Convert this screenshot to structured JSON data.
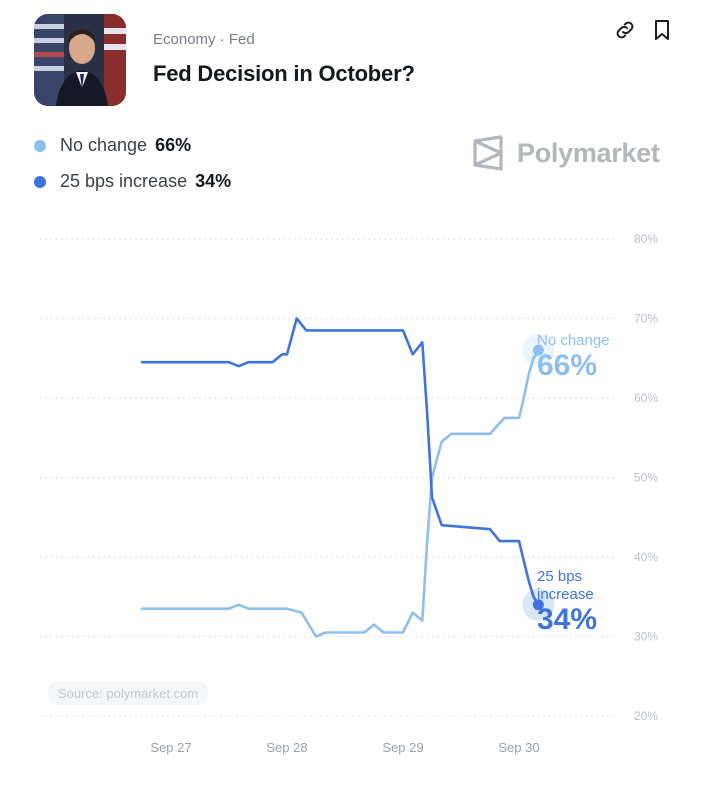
{
  "header": {
    "breadcrumb": "Economy · Fed",
    "title": "Fed Decision in October?"
  },
  "icons": [
    "link-icon",
    "bookmark-icon",
    "polymarket-logo-icon"
  ],
  "legend": [
    {
      "label": "No change",
      "value": "66%",
      "color": "#8ec0ef"
    },
    {
      "label": "25 bps increase",
      "value": "34%",
      "color": "#3f74df"
    }
  ],
  "brand": "Polymarket",
  "source": "Source: polymarket.com",
  "end_labels": {
    "no_change": {
      "name": "No change",
      "value": "66%"
    },
    "increase": {
      "name_line1": "25 bps",
      "name_line2": "increase",
      "value": "34%"
    }
  },
  "chart_data": {
    "type": "line",
    "x_ticks": [
      "Sep 27",
      "Sep 28",
      "Sep 29",
      "Sep 30"
    ],
    "y_ticks": [
      "80%",
      "70%",
      "60%",
      "50%",
      "40%",
      "30%",
      "20%"
    ],
    "ylim": [
      20,
      80
    ],
    "grid": true,
    "series": [
      {
        "name": "No change",
        "color": "#8ec0ef",
        "points": [
          [
            "Sep 26 18:00",
            33.5
          ],
          [
            "Sep 27 12:00",
            33.5
          ],
          [
            "Sep 27 14:00",
            34
          ],
          [
            "Sep 27 16:00",
            33.5
          ],
          [
            "Sep 28 00:00",
            33.5
          ],
          [
            "Sep 28 03:00",
            33
          ],
          [
            "Sep 28 06:00",
            30
          ],
          [
            "Sep 28 08:00",
            30.5
          ],
          [
            "Sep 28 16:00",
            30.5
          ],
          [
            "Sep 28 18:00",
            31.5
          ],
          [
            "Sep 28 20:00",
            30.5
          ],
          [
            "Sep 29 00:00",
            30.5
          ],
          [
            "Sep 29 02:00",
            33
          ],
          [
            "Sep 29 04:00",
            32
          ],
          [
            "Sep 29 05:00",
            42
          ],
          [
            "Sep 29 06:00",
            50
          ],
          [
            "Sep 29 08:00",
            54.5
          ],
          [
            "Sep 29 10:00",
            55.5
          ],
          [
            "Sep 29 18:00",
            55.5
          ],
          [
            "Sep 29 21:00",
            57.5
          ],
          [
            "Sep 30 00:00",
            57.5
          ],
          [
            "Sep 30 01:00",
            60
          ],
          [
            "Sep 30 02:00",
            63
          ],
          [
            "Sep 30 03:00",
            65
          ],
          [
            "Sep 30 04:00",
            66
          ]
        ]
      },
      {
        "name": "25 bps increase",
        "color": "#3f74df",
        "points": [
          [
            "Sep 26 18:00",
            64.5
          ],
          [
            "Sep 27 12:00",
            64.5
          ],
          [
            "Sep 27 14:00",
            64
          ],
          [
            "Sep 27 16:00",
            64.5
          ],
          [
            "Sep 27 21:00",
            64.5
          ],
          [
            "Sep 27 23:00",
            65.5
          ],
          [
            "Sep 28 00:00",
            65.5
          ],
          [
            "Sep 28 02:00",
            70
          ],
          [
            "Sep 28 04:00",
            68.5
          ],
          [
            "Sep 28 10:00",
            68.5
          ],
          [
            "Sep 29 00:00",
            68.5
          ],
          [
            "Sep 29 02:00",
            65.5
          ],
          [
            "Sep 29 04:00",
            67
          ],
          [
            "Sep 29 05:00",
            58
          ],
          [
            "Sep 29 06:00",
            47.5
          ],
          [
            "Sep 29 08:00",
            44
          ],
          [
            "Sep 29 18:00",
            43.5
          ],
          [
            "Sep 29 20:00",
            42
          ],
          [
            "Sep 30 00:00",
            42
          ],
          [
            "Sep 30 02:00",
            37
          ],
          [
            "Sep 30 03:00",
            35
          ],
          [
            "Sep 30 04:00",
            34
          ]
        ]
      }
    ]
  }
}
